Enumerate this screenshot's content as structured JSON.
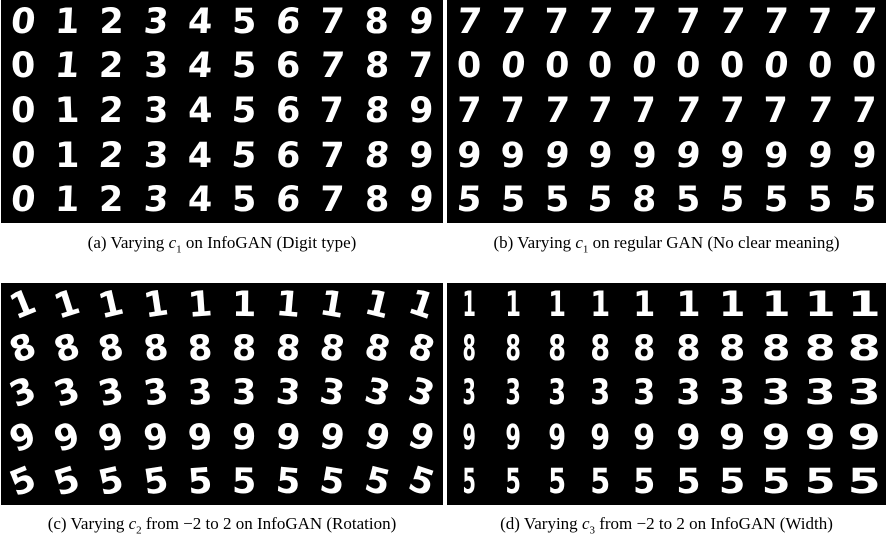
{
  "panels": [
    {
      "id": "a",
      "caption_pre": "(a) Varying ",
      "var": "c",
      "sub": "1",
      "caption_post": " on InfoGAN (Digit type)",
      "rows": [
        [
          "0",
          "1",
          "2",
          "3",
          "4",
          "5",
          "6",
          "7",
          "8",
          "9"
        ],
        [
          "0",
          "1",
          "2",
          "3",
          "4",
          "5",
          "6",
          "7",
          "8",
          "7"
        ],
        [
          "0",
          "1",
          "2",
          "3",
          "4",
          "5",
          "6",
          "7",
          "8",
          "9"
        ],
        [
          "0",
          "1",
          "2",
          "3",
          "4",
          "5",
          "6",
          "7",
          "8",
          "9"
        ],
        [
          "0",
          "1",
          "2",
          "3",
          "4",
          "5",
          "6",
          "7",
          "8",
          "9"
        ]
      ]
    },
    {
      "id": "b",
      "caption_pre": "(b) Varying ",
      "var": "c",
      "sub": "1",
      "caption_post": " on regular GAN (No clear meaning)",
      "rows": [
        [
          "7",
          "7",
          "7",
          "7",
          "7",
          "7",
          "7",
          "7",
          "7",
          "7"
        ],
        [
          "0",
          "0",
          "0",
          "0",
          "0",
          "0",
          "0",
          "0",
          "0",
          "0"
        ],
        [
          "7",
          "7",
          "7",
          "7",
          "7",
          "7",
          "7",
          "7",
          "7",
          "7"
        ],
        [
          "9",
          "9",
          "9",
          "9",
          "9",
          "9",
          "9",
          "9",
          "9",
          "9"
        ],
        [
          "5",
          "5",
          "5",
          "5",
          "8",
          "5",
          "5",
          "5",
          "5",
          "5"
        ]
      ]
    },
    {
      "id": "c",
      "caption_pre": "(c) Varying ",
      "var": "c",
      "sub": "2",
      "caption_post": " from −2 to 2 on InfoGAN (Rotation)",
      "rows": [
        [
          "1",
          "1",
          "1",
          "1",
          "1",
          "1",
          "1",
          "1",
          "1",
          "1"
        ],
        [
          "8",
          "8",
          "8",
          "8",
          "8",
          "8",
          "8",
          "8",
          "8",
          "8"
        ],
        [
          "3",
          "3",
          "3",
          "3",
          "3",
          "3",
          "3",
          "3",
          "3",
          "3"
        ],
        [
          "9",
          "9",
          "9",
          "9",
          "9",
          "9",
          "9",
          "9",
          "9",
          "9"
        ],
        [
          "5",
          "5",
          "5",
          "5",
          "5",
          "5",
          "5",
          "5",
          "5",
          "5"
        ]
      ]
    },
    {
      "id": "d",
      "caption_pre": "(d) Varying ",
      "var": "c",
      "sub": "3",
      "caption_post": " from −2 to 2 on InfoGAN (Width)",
      "rows": [
        [
          "1",
          "1",
          "1",
          "1",
          "1",
          "1",
          "1",
          "1",
          "1",
          "1"
        ],
        [
          "8",
          "8",
          "8",
          "8",
          "8",
          "8",
          "8",
          "8",
          "8",
          "8"
        ],
        [
          "3",
          "3",
          "3",
          "3",
          "3",
          "3",
          "3",
          "3",
          "3",
          "3"
        ],
        [
          "9",
          "9",
          "9",
          "9",
          "9",
          "9",
          "9",
          "9",
          "9",
          "9"
        ],
        [
          "5",
          "5",
          "5",
          "5",
          "5",
          "5",
          "5",
          "5",
          "5",
          "5"
        ]
      ]
    }
  ]
}
